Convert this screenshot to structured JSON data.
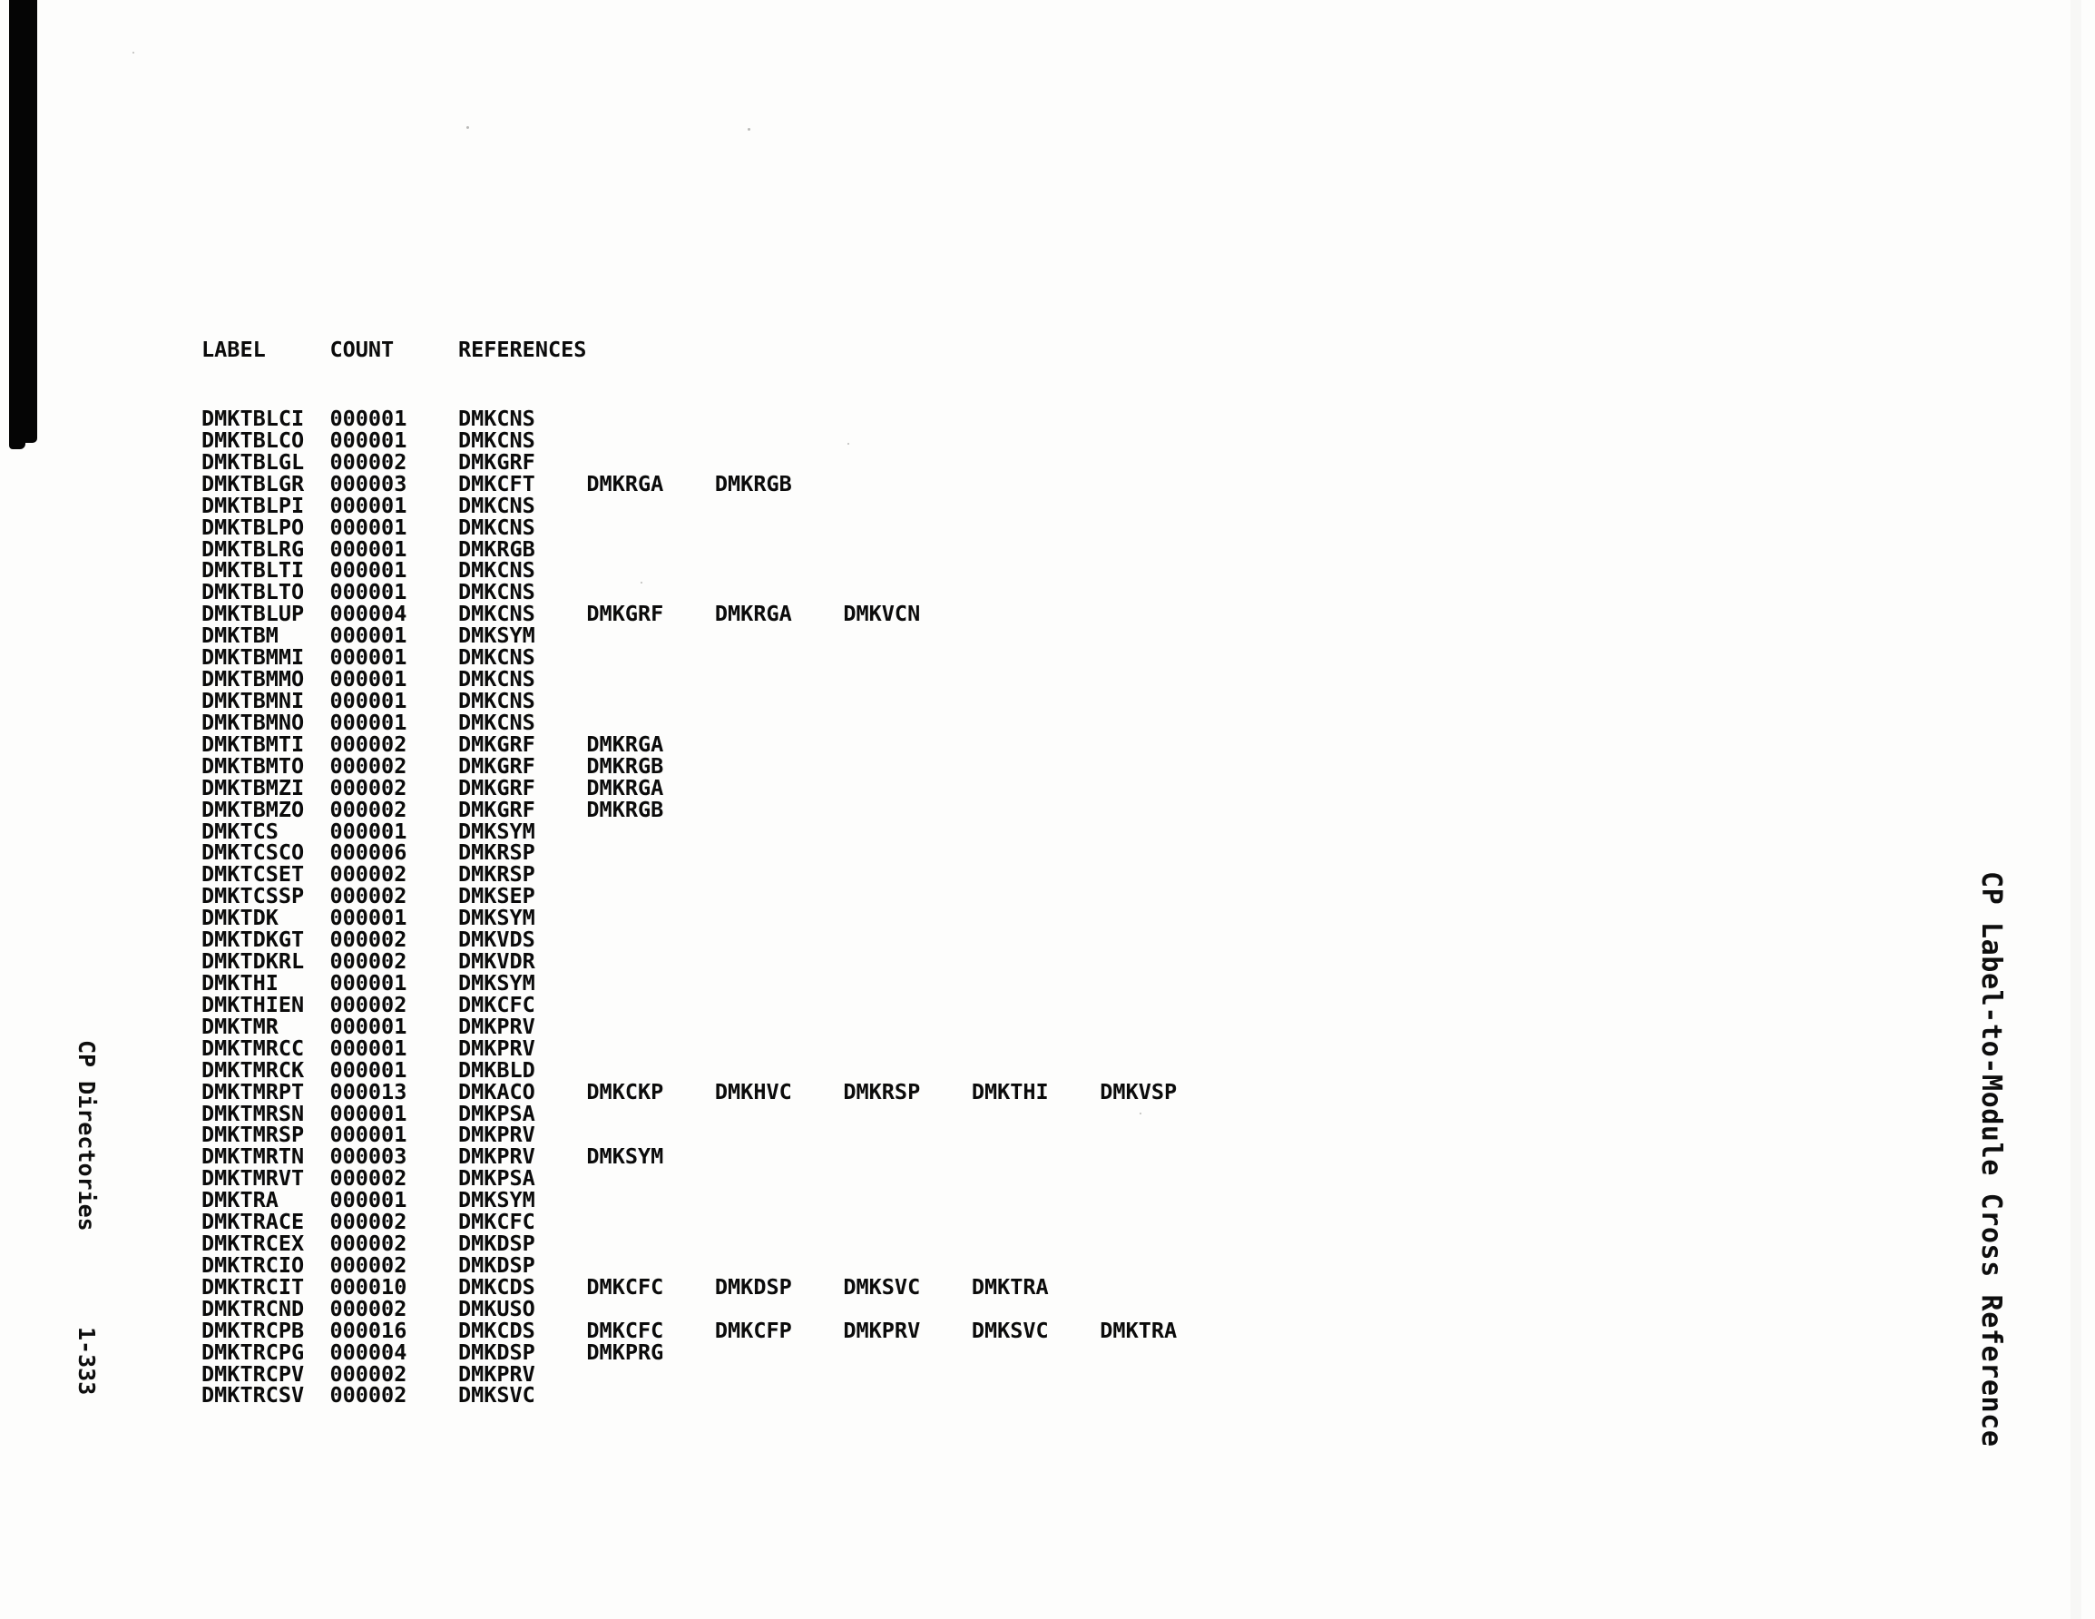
{
  "colors": {
    "ink": "#0b0b0b",
    "paper": "#fdfdfc"
  },
  "document": {
    "left_margin": {
      "title": "CP Directories",
      "page_number": "1-333"
    },
    "right_margin": {
      "title": "CP Label-to-Module Cross Reference"
    }
  },
  "table": {
    "columns": [
      "LABEL",
      "COUNT",
      "REFERENCES"
    ],
    "rows": [
      {
        "label": "DMKTBLCI",
        "count": "000001",
        "references": [
          "DMKCNS"
        ]
      },
      {
        "label": "DMKTBLCO",
        "count": "000001",
        "references": [
          "DMKCNS"
        ]
      },
      {
        "label": "DMKTBLGL",
        "count": "000002",
        "references": [
          "DMKGRF"
        ]
      },
      {
        "label": "DMKTBLGR",
        "count": "000003",
        "references": [
          "DMKCFT",
          "DMKRGA",
          "DMKRGB"
        ]
      },
      {
        "label": "DMKTBLPI",
        "count": "000001",
        "references": [
          "DMKCNS"
        ]
      },
      {
        "label": "DMKTBLPO",
        "count": "000001",
        "references": [
          "DMKCNS"
        ]
      },
      {
        "label": "DMKTBLRG",
        "count": "000001",
        "references": [
          "DMKRGB"
        ]
      },
      {
        "label": "DMKTBLTI",
        "count": "000001",
        "references": [
          "DMKCNS"
        ]
      },
      {
        "label": "DMKTBLTO",
        "count": "000001",
        "references": [
          "DMKCNS"
        ]
      },
      {
        "label": "DMKTBLUP",
        "count": "000004",
        "references": [
          "DMKCNS",
          "DMKGRF",
          "DMKRGA",
          "DMKVCN"
        ]
      },
      {
        "label": "DMKTBM",
        "count": "000001",
        "references": [
          "DMKSYM"
        ]
      },
      {
        "label": "DMKTBMMI",
        "count": "000001",
        "references": [
          "DMKCNS"
        ]
      },
      {
        "label": "DMKTBMMO",
        "count": "000001",
        "references": [
          "DMKCNS"
        ]
      },
      {
        "label": "DMKTBMNI",
        "count": "000001",
        "references": [
          "DMKCNS"
        ]
      },
      {
        "label": "DMKTBMNO",
        "count": "000001",
        "references": [
          "DMKCNS"
        ]
      },
      {
        "label": "DMKTBMTI",
        "count": "000002",
        "references": [
          "DMKGRF",
          "DMKRGA"
        ]
      },
      {
        "label": "DMKTBMTO",
        "count": "000002",
        "references": [
          "DMKGRF",
          "DMKRGB"
        ]
      },
      {
        "label": "DMKTBMZI",
        "count": "000002",
        "references": [
          "DMKGRF",
          "DMKRGA"
        ]
      },
      {
        "label": "DMKTBMZO",
        "count": "000002",
        "references": [
          "DMKGRF",
          "DMKRGB"
        ]
      },
      {
        "label": "DMKTCS",
        "count": "000001",
        "references": [
          "DMKSYM"
        ]
      },
      {
        "label": "DMKTCSCO",
        "count": "000006",
        "references": [
          "DMKRSP"
        ]
      },
      {
        "label": "DMKTCSET",
        "count": "000002",
        "references": [
          "DMKRSP"
        ]
      },
      {
        "label": "DMKTCSSP",
        "count": "000002",
        "references": [
          "DMKSEP"
        ]
      },
      {
        "label": "DMKTDK",
        "count": "000001",
        "references": [
          "DMKSYM"
        ]
      },
      {
        "label": "DMKTDKGT",
        "count": "000002",
        "references": [
          "DMKVDS"
        ]
      },
      {
        "label": "DMKTDKRL",
        "count": "000002",
        "references": [
          "DMKVDR"
        ]
      },
      {
        "label": "DMKTHI",
        "count": "000001",
        "references": [
          "DMKSYM"
        ]
      },
      {
        "label": "DMKTHIEN",
        "count": "000002",
        "references": [
          "DMKCFC"
        ]
      },
      {
        "label": "DMKTMR",
        "count": "000001",
        "references": [
          "DMKPRV"
        ]
      },
      {
        "label": "DMKTMRCC",
        "count": "000001",
        "references": [
          "DMKPRV"
        ]
      },
      {
        "label": "DMKTMRCK",
        "count": "000001",
        "references": [
          "DMKBLD"
        ]
      },
      {
        "label": "DMKTMRPT",
        "count": "000013",
        "references": [
          "DMKACO",
          "DMKCKP",
          "DMKHVC",
          "DMKRSP",
          "DMKTHI",
          "DMKVSP"
        ]
      },
      {
        "label": "DMKTMRSN",
        "count": "000001",
        "references": [
          "DMKPSA"
        ]
      },
      {
        "label": "DMKTMRSP",
        "count": "000001",
        "references": [
          "DMKPRV"
        ]
      },
      {
        "label": "DMKTMRTN",
        "count": "000003",
        "references": [
          "DMKPRV",
          "DMKSYM"
        ]
      },
      {
        "label": "DMKTMRVT",
        "count": "000002",
        "references": [
          "DMKPSA"
        ]
      },
      {
        "label": "DMKTRA",
        "count": "000001",
        "references": [
          "DMKSYM"
        ]
      },
      {
        "label": "DMKTRACE",
        "count": "000002",
        "references": [
          "DMKCFC"
        ]
      },
      {
        "label": "DMKTRCEX",
        "count": "000002",
        "references": [
          "DMKDSP"
        ]
      },
      {
        "label": "DMKTRCIO",
        "count": "000002",
        "references": [
          "DMKDSP"
        ]
      },
      {
        "label": "DMKTRCIT",
        "count": "000010",
        "references": [
          "DMKCDS",
          "DMKCFC",
          "DMKDSP",
          "DMKSVC",
          "DMKTRA"
        ]
      },
      {
        "label": "DMKTRCND",
        "count": "000002",
        "references": [
          "DMKUSO"
        ]
      },
      {
        "label": "DMKTRCPB",
        "count": "000016",
        "references": [
          "DMKCDS",
          "DMKCFC",
          "DMKCFP",
          "DMKPRV",
          "DMKSVC",
          "DMKTRA"
        ]
      },
      {
        "label": "DMKTRCPG",
        "count": "000004",
        "references": [
          "DMKDSP",
          "DMKPRG"
        ]
      },
      {
        "label": "DMKTRCPV",
        "count": "000002",
        "references": [
          "DMKPRV"
        ]
      },
      {
        "label": "DMKTRCSV",
        "count": "000002",
        "references": [
          "DMKSVC"
        ]
      }
    ]
  }
}
